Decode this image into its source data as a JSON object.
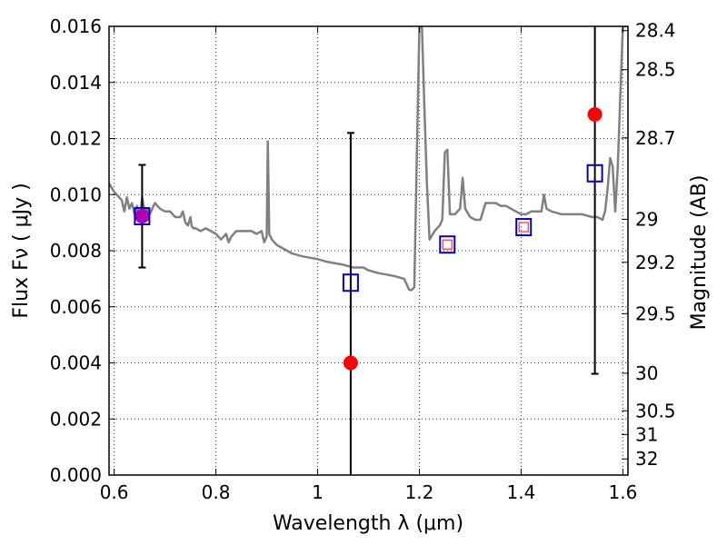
{
  "chart_data": {
    "type": "scatter",
    "xlabel": "Wavelength  λ (μm)",
    "ylabel": "Flux  Fν  ( μJy )",
    "ylabel_right": "Magnitude (AB)",
    "xlim": [
      0.59,
      1.61
    ],
    "ylim": [
      0.0,
      0.016
    ],
    "x_ticks": [
      {
        "value": 0.6,
        "label": "0.6"
      },
      {
        "value": 0.8,
        "label": "0.8"
      },
      {
        "value": 1.0,
        "label": "1"
      },
      {
        "value": 1.2,
        "label": "1.2"
      },
      {
        "value": 1.4,
        "label": "1.4"
      },
      {
        "value": 1.6,
        "label": "1.6"
      }
    ],
    "y_ticks": [
      {
        "value": 0.0,
        "label": "0.000"
      },
      {
        "value": 0.002,
        "label": "0.002"
      },
      {
        "value": 0.004,
        "label": "0.004"
      },
      {
        "value": 0.006,
        "label": "0.006"
      },
      {
        "value": 0.008,
        "label": "0.008"
      },
      {
        "value": 0.01,
        "label": "0.010"
      },
      {
        "value": 0.012,
        "label": "0.012"
      },
      {
        "value": 0.014,
        "label": "0.014"
      },
      {
        "value": 0.016,
        "label": "0.016"
      }
    ],
    "right_ticks": [
      {
        "mag": 28.4,
        "label": "28.4"
      },
      {
        "mag": 28.5,
        "label": "28.5"
      },
      {
        "mag": 28.7,
        "label": "28.7"
      },
      {
        "mag": 29.0,
        "label": "29"
      },
      {
        "mag": 29.2,
        "label": "29.2"
      },
      {
        "mag": 29.5,
        "label": "29.5"
      },
      {
        "mag": 30.0,
        "label": "30"
      },
      {
        "mag": 30.5,
        "label": "30.5"
      },
      {
        "mag": 31.0,
        "label": "31"
      },
      {
        "mag": 32.0,
        "label": "32"
      }
    ],
    "grid": true,
    "model_spectrum": {
      "color": "#808080",
      "x": [
        0.59,
        0.6,
        0.61,
        0.615,
        0.62,
        0.625,
        0.63,
        0.635,
        0.64,
        0.645,
        0.65,
        0.655,
        0.66,
        0.665,
        0.67,
        0.68,
        0.69,
        0.7,
        0.71,
        0.72,
        0.73,
        0.735,
        0.74,
        0.745,
        0.75,
        0.752,
        0.755,
        0.76,
        0.77,
        0.78,
        0.79,
        0.8,
        0.81,
        0.82,
        0.825,
        0.83,
        0.84,
        0.85,
        0.86,
        0.87,
        0.88,
        0.89,
        0.895,
        0.9,
        0.902,
        0.905,
        0.91,
        0.92,
        0.93,
        0.95,
        0.97,
        1.0,
        1.02,
        1.05,
        1.07,
        1.09,
        1.1,
        1.12,
        1.15,
        1.17,
        1.18,
        1.185,
        1.19,
        1.2,
        1.205,
        1.21,
        1.215,
        1.22,
        1.23,
        1.24,
        1.245,
        1.25,
        1.255,
        1.26,
        1.27,
        1.28,
        1.285,
        1.29,
        1.3,
        1.31,
        1.32,
        1.33,
        1.34,
        1.35,
        1.36,
        1.37,
        1.38,
        1.39,
        1.4,
        1.41,
        1.42,
        1.43,
        1.44,
        1.445,
        1.45,
        1.46,
        1.48,
        1.5,
        1.52,
        1.54,
        1.55,
        1.56,
        1.565,
        1.57,
        1.575,
        1.58,
        1.585,
        1.59,
        1.6,
        1.61
      ],
      "y": [
        0.0104,
        0.0101,
        0.0099,
        0.0098,
        0.0094,
        0.0099,
        0.0095,
        0.0097,
        0.0093,
        0.0096,
        0.0091,
        0.0099,
        0.0094,
        0.0095,
        0.0093,
        0.0097,
        0.0095,
        0.0094,
        0.0094,
        0.0092,
        0.0092,
        0.0094,
        0.009,
        0.0089,
        0.0092,
        0.0089,
        0.0088,
        0.0088,
        0.0087,
        0.0088,
        0.0087,
        0.0086,
        0.0084,
        0.0086,
        0.0083,
        0.0085,
        0.0087,
        0.0087,
        0.0087,
        0.0087,
        0.0086,
        0.0087,
        0.0083,
        0.0085,
        0.0119,
        0.0086,
        0.0084,
        0.0082,
        0.0081,
        0.0079,
        0.0078,
        0.0077,
        0.0076,
        0.0075,
        0.0074,
        0.0074,
        0.0073,
        0.0072,
        0.0071,
        0.007,
        0.0066,
        0.0066,
        0.0067,
        0.016,
        0.016,
        0.013,
        0.0103,
        0.0084,
        0.0087,
        0.0089,
        0.0091,
        0.0115,
        0.0116,
        0.0093,
        0.0093,
        0.0095,
        0.0106,
        0.0095,
        0.0092,
        0.0091,
        0.0091,
        0.0097,
        0.0097,
        0.0097,
        0.0096,
        0.0096,
        0.0095,
        0.0094,
        0.0093,
        0.0093,
        0.0094,
        0.0094,
        0.0094,
        0.01,
        0.0095,
        0.0094,
        0.0093,
        0.0093,
        0.0093,
        0.0092,
        0.0092,
        0.0091,
        0.0094,
        0.0102,
        0.0113,
        0.011,
        0.0094,
        0.011,
        0.016,
        0.016
      ]
    },
    "observed_points": {
      "color": "#ff0000",
      "points": [
        {
          "x": 0.655,
          "y": 0.00923,
          "err": 0.00183
        },
        {
          "x": 1.065,
          "y": 0.004,
          "err": 0.0082
        },
        {
          "x": 1.545,
          "y": 0.01286,
          "err": 0.00925
        }
      ]
    },
    "model_squares_blue": {
      "color": "#0000cc",
      "points": [
        {
          "x": 0.655,
          "y": 0.00923
        },
        {
          "x": 1.065,
          "y": 0.00686
        },
        {
          "x": 1.255,
          "y": 0.00822
        },
        {
          "x": 1.405,
          "y": 0.00884
        },
        {
          "x": 1.545,
          "y": 0.01076
        }
      ]
    },
    "model_squares_red": {
      "color": "#ff3030",
      "points": [
        {
          "x": 1.255,
          "y": 0.00822
        },
        {
          "x": 1.405,
          "y": 0.00884
        }
      ]
    },
    "highlight_point": {
      "x": 0.655,
      "y": 0.00923,
      "color": "#b000b0"
    }
  }
}
